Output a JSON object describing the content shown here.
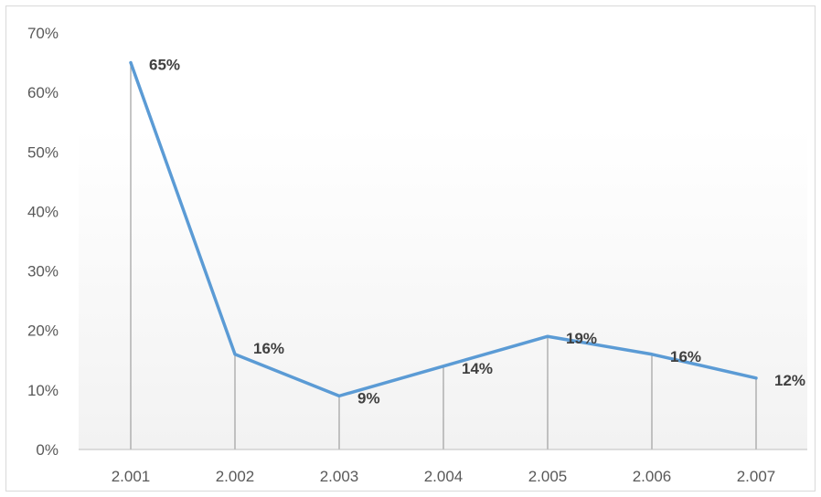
{
  "chart_data": {
    "type": "line",
    "title": "",
    "xlabel": "",
    "ylabel": "",
    "categories": [
      "2.001",
      "2.002",
      "2.003",
      "2.004",
      "2.005",
      "2.006",
      "2.007"
    ],
    "series": [
      {
        "values": [
          65,
          16,
          9,
          14,
          19,
          16,
          12
        ],
        "data_labels": [
          "65%",
          "16%",
          "9%",
          "14%",
          "19%",
          "16%",
          "12%"
        ],
        "color": "#5b9bd5"
      }
    ],
    "y_ticks": [
      0,
      10,
      20,
      30,
      40,
      50,
      60,
      70
    ],
    "y_tick_labels": [
      "0%",
      "10%",
      "20%",
      "30%",
      "40%",
      "50%",
      "60%",
      "70%"
    ],
    "ylim": [
      0,
      70
    ],
    "grid": false,
    "drop_lines": true,
    "legend": "none"
  }
}
